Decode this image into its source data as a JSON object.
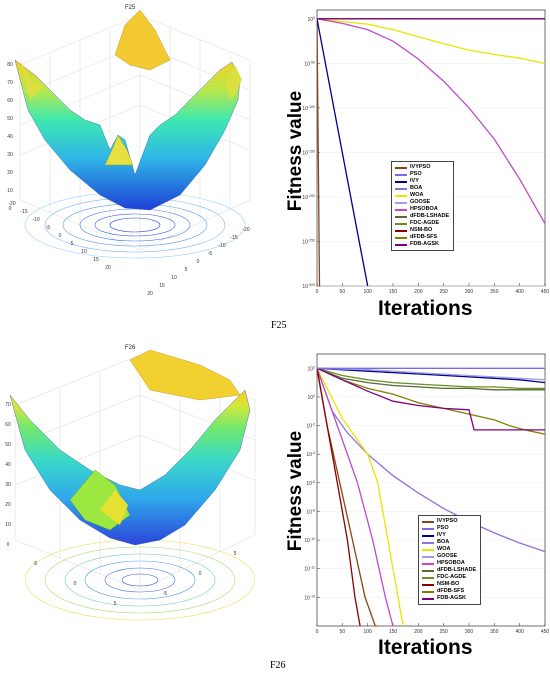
{
  "captions": {
    "top": "F25",
    "bottom": "F26"
  },
  "surface_titles": {
    "top": "F25",
    "bottom": "F26"
  },
  "surface_ticks": {
    "top_z": [
      "80",
      "70",
      "60",
      "50",
      "40",
      "30",
      "20",
      "10",
      "0"
    ],
    "top_x": [
      "-20",
      "-15",
      "-10",
      "-5",
      "0",
      "5",
      "10",
      "15",
      "20"
    ],
    "top_y": [
      "20",
      "15",
      "10",
      "5",
      "0",
      "-5",
      "-10",
      "-15",
      "-20"
    ],
    "bottom_z": [
      "70",
      "60",
      "50",
      "40",
      "30",
      "20",
      "10",
      "0"
    ],
    "bottom_x": [
      "-5",
      "0",
      "5"
    ],
    "bottom_y": [
      "5",
      "0",
      "-5"
    ]
  },
  "colors": {
    "IVYPSO": "#8B4513",
    "PSO": "#7B68EE",
    "IVY": "#00008B",
    "BOA": "#9370DB",
    "WOA": "#E6E600",
    "GOOSE": "#A0A0E8",
    "HPSOBOA": "#C04ACB",
    "dFDB-LSHADE": "#556B2F",
    "FDC-AGDE": "#6B8E23",
    "NSM-BO": "#8B0000",
    "dFDB-SFS": "#808000",
    "FDB-AGSK": "#800080"
  },
  "chart_data": [
    {
      "type": "line",
      "title": "",
      "xlabel": "Iterations",
      "ylabel": "Fitness value",
      "xlim": [
        0,
        450
      ],
      "yscale": "log",
      "ylim_exp": [
        -300,
        10
      ],
      "x_ticks": [
        "0",
        "50",
        "100",
        "150",
        "200",
        "250",
        "300",
        "350",
        "400",
        "450"
      ],
      "y_ticks": [
        "10^0",
        "10^-50",
        "10^-100",
        "10^-150",
        "10^-200",
        "10^-250",
        "10^-300"
      ],
      "y_tick_exps": [
        0,
        -50,
        -100,
        -150,
        -200,
        -250,
        -300
      ],
      "legend": [
        "IVYPSO",
        "PSO",
        "IVY",
        "BOA",
        "WOA",
        "GOOSE",
        "HPSOBOA",
        "dFDB-LSHADE",
        "FDC-AGDE",
        "NSM-BO",
        "dFDB-SFS",
        "FDB-AGSK"
      ],
      "series": [
        {
          "name": "IVYPSO",
          "x": [
            0,
            5
          ],
          "y_exp": [
            0,
            -300
          ]
        },
        {
          "name": "IVY",
          "x": [
            0,
            20,
            50,
            80,
            100
          ],
          "y_exp": [
            0,
            -60,
            -150,
            -240,
            -300
          ]
        },
        {
          "name": "WOA",
          "x": [
            0,
            50,
            100,
            150,
            200,
            250,
            300,
            350,
            400,
            450
          ],
          "y_exp": [
            0,
            -3,
            -6,
            -12,
            -20,
            -28,
            -35,
            -40,
            -44,
            -50
          ]
        },
        {
          "name": "HPSOBOA",
          "x": [
            0,
            50,
            100,
            150,
            200,
            250,
            300,
            350,
            400,
            450
          ],
          "y_exp": [
            0,
            -5,
            -12,
            -25,
            -45,
            -70,
            -100,
            -135,
            -180,
            -230
          ]
        },
        {
          "name": "PSO",
          "x": [
            0,
            450
          ],
          "y_exp": [
            0,
            0
          ]
        },
        {
          "name": "BOA",
          "x": [
            0,
            450
          ],
          "y_exp": [
            0,
            0
          ]
        },
        {
          "name": "GOOSE",
          "x": [
            0,
            450
          ],
          "y_exp": [
            0,
            0
          ]
        },
        {
          "name": "dFDB-LSHADE",
          "x": [
            0,
            450
          ],
          "y_exp": [
            0,
            0
          ]
        },
        {
          "name": "FDC-AGDE",
          "x": [
            0,
            450
          ],
          "y_exp": [
            0,
            0
          ]
        },
        {
          "name": "NSM-BO",
          "x": [
            0,
            450
          ],
          "y_exp": [
            0,
            0
          ]
        },
        {
          "name": "dFDB-SFS",
          "x": [
            0,
            450
          ],
          "y_exp": [
            0,
            0
          ]
        },
        {
          "name": "FDB-AGSK",
          "x": [
            0,
            450
          ],
          "y_exp": [
            0,
            0
          ]
        }
      ]
    },
    {
      "type": "line",
      "title": "",
      "xlabel": "Iterations",
      "ylabel": "Fitness value",
      "xlim": [
        0,
        450
      ],
      "yscale": "log",
      "ylim_exp": [
        -16,
        3
      ],
      "x_ticks": [
        "0",
        "50",
        "100",
        "150",
        "200",
        "250",
        "300",
        "350",
        "400",
        "450"
      ],
      "y_ticks": [
        "10^2",
        "10^0",
        "10^-2",
        "10^-4",
        "10^-6",
        "10^-8",
        "10^-10",
        "10^-12",
        "10^-14"
      ],
      "y_tick_exps": [
        2,
        0,
        -2,
        -4,
        -6,
        -8,
        -10,
        -12,
        -14
      ],
      "legend": [
        "IVYPSO",
        "PSO",
        "IVY",
        "BOA",
        "WOA",
        "GOOSE",
        "HPSOBOA",
        "dFDB-LSHADE",
        "FDC-AGDE",
        "NSM-BO",
        "dFDB-SFS",
        "FDB-AGSK"
      ],
      "series": [
        {
          "name": "IVY",
          "x": [
            0,
            100,
            200,
            300,
            400,
            450
          ],
          "y_exp": [
            2,
            1.8,
            1.6,
            1.4,
            1.2,
            1.0
          ]
        },
        {
          "name": "GOOSE",
          "x": [
            0,
            100,
            200,
            300,
            400,
            450
          ],
          "y_exp": [
            2,
            1.9,
            1.7,
            1.5,
            1.3,
            1.2
          ]
        },
        {
          "name": "FDC-AGDE",
          "x": [
            0,
            50,
            100,
            150,
            200,
            250,
            300,
            350,
            400,
            450
          ],
          "y_exp": [
            2,
            1.5,
            1.2,
            1.0,
            0.9,
            0.8,
            0.7,
            0.7,
            0.6,
            0.6
          ]
        },
        {
          "name": "dFDB-LSHADE",
          "x": [
            0,
            50,
            100,
            150,
            200,
            250,
            300,
            350,
            400,
            450
          ],
          "y_exp": [
            2,
            1.3,
            1.0,
            0.8,
            0.7,
            0.6,
            0.6,
            0.5,
            0.5,
            0.5
          ]
        },
        {
          "name": "dFDB-SFS",
          "x": [
            0,
            50,
            100,
            150,
            200,
            250,
            300,
            350,
            380,
            410,
            450
          ],
          "y_exp": [
            2,
            1.2,
            0.6,
            0.2,
            -0.4,
            -0.8,
            -1.2,
            -1.6,
            -2.0,
            -2.3,
            -2.6
          ]
        },
        {
          "name": "FDB-AGSK",
          "x": [
            0,
            50,
            100,
            150,
            200,
            250,
            300,
            310,
            350,
            400,
            410,
            450
          ],
          "y_exp": [
            2,
            1.2,
            0.4,
            -0.3,
            -0.6,
            -0.8,
            -0.9,
            -2.3,
            -2.3,
            -2.3,
            -2.3,
            -2.3
          ]
        },
        {
          "name": "BOA",
          "x": [
            0,
            30,
            60,
            100,
            150,
            200,
            250,
            300,
            350,
            400,
            450
          ],
          "y_exp": [
            2,
            -1,
            -2.5,
            -4,
            -5.5,
            -6.7,
            -7.8,
            -8.7,
            -9.5,
            -10.2,
            -10.8
          ]
        },
        {
          "name": "WOA",
          "x": [
            0,
            50,
            100,
            120,
            140,
            160,
            170
          ],
          "y_exp": [
            2,
            -1.5,
            -4,
            -6,
            -10,
            -14,
            -16
          ]
        },
        {
          "name": "HPSOBOA",
          "x": [
            0,
            40,
            80,
            110,
            135,
            150
          ],
          "y_exp": [
            2,
            -2,
            -6,
            -10,
            -14,
            -16
          ]
        },
        {
          "name": "IVYPSO",
          "x": [
            0,
            20,
            45,
            70,
            95,
            115,
            120
          ],
          "y_exp": [
            2,
            -2,
            -6,
            -10,
            -14,
            -16,
            -16
          ]
        },
        {
          "name": "NSM-BO",
          "x": [
            0,
            20,
            40,
            60,
            75,
            85
          ],
          "y_exp": [
            2,
            -2,
            -6,
            -10,
            -14,
            -16
          ]
        },
        {
          "name": "PSO",
          "x": [
            0,
            450
          ],
          "y_exp": [
            2,
            2
          ]
        }
      ]
    }
  ]
}
